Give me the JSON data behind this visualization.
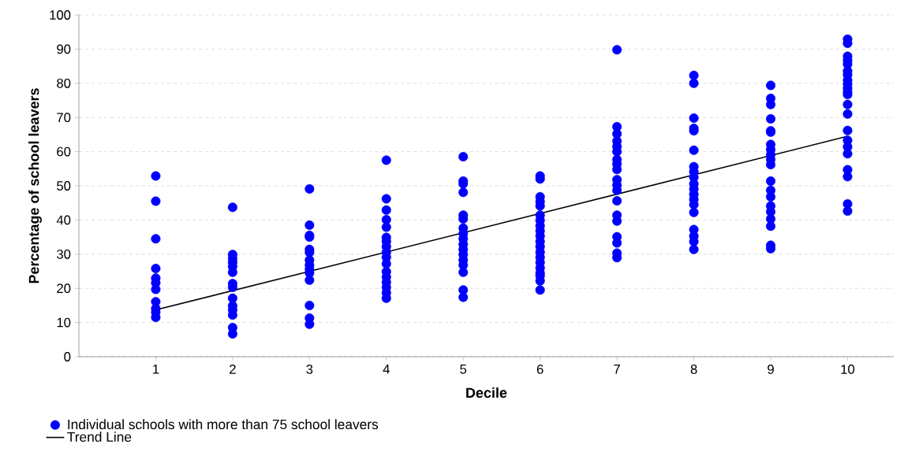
{
  "chart_data": {
    "type": "scatter",
    "xlabel": "Decile",
    "ylabel": "Percentage of school leavers",
    "xlim": [
      0,
      10.6
    ],
    "ylim": [
      0,
      100
    ],
    "xticks": [
      1,
      2,
      3,
      4,
      5,
      6,
      7,
      8,
      9,
      10
    ],
    "yticks": [
      0,
      10,
      20,
      30,
      40,
      50,
      60,
      70,
      80,
      90,
      100
    ],
    "grid": "y",
    "legend": "bottom left",
    "series": [
      {
        "name": "Individual schools with more than 75 school leavers",
        "type": "scatter",
        "marker": "circle",
        "color": "#0000ff",
        "x": [
          1,
          1,
          1,
          1,
          1,
          1,
          1,
          1,
          1,
          1,
          1,
          2,
          2,
          2,
          2,
          2,
          2,
          2,
          2,
          2,
          2,
          2,
          2,
          2,
          2,
          3,
          3,
          3,
          3,
          3,
          3,
          3,
          3,
          3,
          3,
          3,
          3,
          3,
          3,
          4,
          4,
          4,
          4,
          4,
          4,
          4,
          4,
          4,
          4,
          4,
          4,
          4,
          4,
          4,
          4,
          4,
          5,
          5,
          5,
          5,
          5,
          5,
          5,
          5,
          5,
          5,
          5,
          5,
          5,
          5,
          5,
          5,
          5,
          6,
          6,
          6,
          6,
          6,
          6,
          6,
          6,
          6,
          6,
          6,
          6,
          6,
          6,
          6,
          6,
          6,
          6,
          6,
          6,
          7,
          7,
          7,
          7,
          7,
          7,
          7,
          7,
          7,
          7,
          7,
          7,
          7,
          7,
          7,
          7,
          7,
          7,
          7,
          8,
          8,
          8,
          8,
          8,
          8,
          8,
          8,
          8,
          8,
          8,
          8,
          8,
          8,
          8,
          8,
          8,
          8,
          8,
          9,
          9,
          9,
          9,
          9,
          9,
          9,
          9,
          9,
          9,
          9,
          9,
          9,
          9,
          9,
          9,
          9,
          9,
          9,
          9,
          10,
          10,
          10,
          10,
          10,
          10,
          10,
          10,
          10,
          10,
          10,
          10,
          10,
          10,
          10,
          10,
          10,
          10,
          10,
          10,
          10,
          10
        ],
        "values": [
          52.9,
          45.5,
          34.5,
          25.8,
          23.0,
          21.6,
          19.7,
          16.1,
          14.1,
          13.0,
          11.5,
          43.7,
          29.9,
          28.7,
          27.6,
          26.4,
          24.7,
          21.4,
          20.3,
          17.1,
          14.9,
          13.7,
          12.2,
          8.5,
          6.7,
          49.1,
          38.5,
          35.5,
          35.0,
          31.4,
          30.5,
          28.3,
          26.8,
          25.6,
          24.5,
          22.4,
          15.0,
          11.3,
          9.5,
          57.5,
          46.2,
          42.9,
          40.1,
          37.9,
          34.9,
          33.7,
          32.2,
          30.6,
          29.1,
          27.2,
          24.9,
          23.3,
          21.8,
          20.3,
          18.7,
          17.1,
          58.5,
          51.4,
          50.6,
          48.1,
          41.4,
          40.3,
          37.6,
          36.0,
          34.5,
          32.9,
          31.4,
          29.9,
          28.3,
          26.8,
          24.7,
          19.5,
          17.4,
          52.9,
          52.0,
          46.8,
          45.4,
          44.1,
          41.4,
          39.9,
          38.3,
          36.8,
          35.3,
          33.7,
          32.2,
          30.6,
          29.1,
          27.6,
          26.0,
          24.5,
          23.7,
          22.2,
          19.5,
          89.8,
          67.3,
          65.2,
          63.1,
          61.5,
          60.0,
          57.7,
          56.4,
          54.8,
          51.8,
          50.2,
          48.7,
          45.6,
          41.4,
          39.7,
          35.1,
          33.3,
          30.3,
          29.0,
          82.3,
          80.0,
          69.8,
          66.8,
          66.1,
          60.4,
          55.6,
          54.1,
          52.5,
          50.6,
          49.1,
          47.5,
          46.0,
          44.5,
          42.2,
          37.2,
          35.3,
          33.7,
          31.4,
          79.4,
          75.6,
          73.8,
          69.6,
          66.1,
          65.7,
          62.1,
          60.6,
          59.1,
          57.7,
          56.2,
          51.4,
          48.7,
          46.8,
          44.1,
          42.4,
          40.3,
          38.2,
          32.6,
          31.6,
          92.9,
          91.7,
          87.9,
          86.7,
          85.6,
          83.6,
          82.5,
          80.9,
          79.8,
          78.6,
          77.5,
          76.7,
          73.8,
          71.0,
          66.2,
          63.3,
          61.4,
          59.4,
          54.7,
          52.7,
          44.7,
          42.6
        ]
      },
      {
        "name": "Trend Line",
        "type": "line",
        "marker": "none",
        "line_style": "solid",
        "color": "#000000",
        "x": [
          1,
          10
        ],
        "values": [
          13.7,
          64.5
        ]
      }
    ]
  }
}
